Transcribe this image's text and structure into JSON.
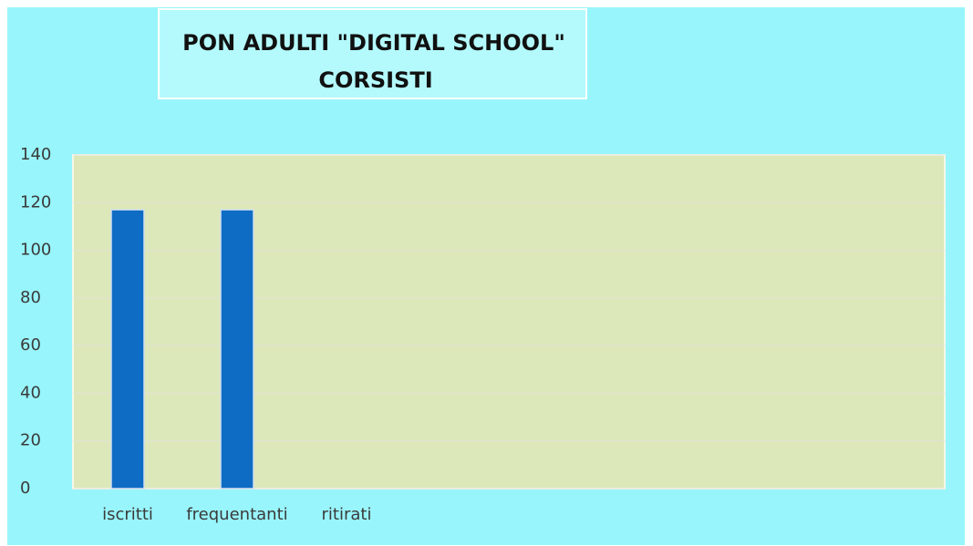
{
  "chart_data": {
    "type": "bar",
    "title": [
      "PON ADULTI \"DIGITAL SCHOOL\"",
      "CORSISTI"
    ],
    "categories": [
      "iscritti",
      "frequentanti",
      "ritirati"
    ],
    "values": [
      117,
      117,
      0
    ],
    "color": "#0f6cc4",
    "ylim": [
      0,
      140
    ],
    "yticks": [
      0,
      20,
      40,
      60,
      80,
      100,
      120,
      140
    ],
    "grid": true
  }
}
